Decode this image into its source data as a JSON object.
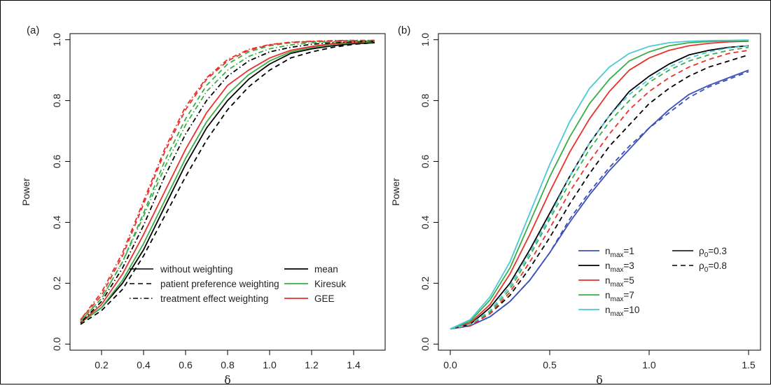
{
  "figure": {
    "panels": [
      "(a)",
      "(b)"
    ]
  },
  "colors": {
    "black": "#000000",
    "blue": "#3a4fb8",
    "green": "#3aae46",
    "red": "#e8312c",
    "cyan": "#4cc8d8"
  },
  "chart_data": [
    {
      "panel": "(a)",
      "type": "line",
      "xlabel": "δ",
      "ylabel": "Power",
      "xlim": [
        0.05,
        1.55
      ],
      "ylim": [
        -0.02,
        1.02
      ],
      "xticks": [
        "0.2",
        "0.4",
        "0.6",
        "0.8",
        "1.0",
        "1.2",
        "1.4"
      ],
      "yticks": [
        "0.0",
        "0.2",
        "0.4",
        "0.6",
        "0.8",
        "1.0"
      ],
      "x": [
        0.1,
        0.2,
        0.3,
        0.4,
        0.5,
        0.6,
        0.7,
        0.8,
        0.9,
        1.0,
        1.1,
        1.2,
        1.3,
        1.4,
        1.5
      ],
      "legend": {
        "styles": [
          {
            "label": "without weighting",
            "dash": "solid"
          },
          {
            "label": "patient preference weighting",
            "dash": "dashed"
          },
          {
            "label": "treatment effect weighting",
            "dash": "dotdash"
          }
        ],
        "methods": [
          {
            "label": "mean",
            "color": "#000000"
          },
          {
            "label": "Kiresuk",
            "color": "#3aae46"
          },
          {
            "label": "GEE",
            "color": "#e8312c"
          }
        ],
        "placement": "bottom-right"
      },
      "series": [
        {
          "method": "mean",
          "weighting": "solid",
          "color": "#000000",
          "dash": "solid",
          "values": [
            0.07,
            0.12,
            0.2,
            0.31,
            0.45,
            0.59,
            0.71,
            0.8,
            0.87,
            0.92,
            0.955,
            0.97,
            0.98,
            0.987,
            0.99
          ]
        },
        {
          "method": "Kiresuk",
          "weighting": "solid",
          "color": "#3aae46",
          "dash": "solid",
          "values": [
            0.07,
            0.12,
            0.21,
            0.33,
            0.47,
            0.61,
            0.73,
            0.82,
            0.885,
            0.93,
            0.96,
            0.975,
            0.985,
            0.99,
            0.993
          ]
        },
        {
          "method": "GEE",
          "weighting": "solid",
          "color": "#e8312c",
          "dash": "solid",
          "values": [
            0.07,
            0.13,
            0.23,
            0.36,
            0.5,
            0.64,
            0.76,
            0.85,
            0.9,
            0.94,
            0.965,
            0.978,
            0.987,
            0.992,
            0.995
          ]
        },
        {
          "method": "mean",
          "weighting": "dashed",
          "color": "#000000",
          "dash": "dashed",
          "values": [
            0.065,
            0.11,
            0.18,
            0.29,
            0.42,
            0.55,
            0.67,
            0.77,
            0.845,
            0.9,
            0.94,
            0.96,
            0.975,
            0.985,
            0.99
          ]
        },
        {
          "method": "Kiresuk",
          "weighting": "dashed",
          "color": "#3aae46",
          "dash": "dashed",
          "values": [
            0.075,
            0.15,
            0.27,
            0.43,
            0.6,
            0.74,
            0.85,
            0.92,
            0.96,
            0.98,
            0.99,
            0.993,
            0.995,
            0.996,
            0.997
          ]
        },
        {
          "method": "GEE",
          "weighting": "dashed",
          "color": "#e8312c",
          "dash": "dashed",
          "values": [
            0.08,
            0.16,
            0.29,
            0.46,
            0.63,
            0.77,
            0.87,
            0.93,
            0.965,
            0.983,
            0.991,
            0.994,
            0.996,
            0.997,
            0.998
          ]
        },
        {
          "method": "mean",
          "weighting": "dotdash",
          "color": "#000000",
          "dash": "dotdash",
          "values": [
            0.07,
            0.14,
            0.25,
            0.39,
            0.55,
            0.69,
            0.8,
            0.88,
            0.93,
            0.96,
            0.975,
            0.985,
            0.99,
            0.993,
            0.995
          ]
        },
        {
          "method": "Kiresuk",
          "weighting": "dotdash",
          "color": "#3aae46",
          "dash": "dotdash",
          "values": [
            0.075,
            0.15,
            0.27,
            0.42,
            0.58,
            0.72,
            0.83,
            0.9,
            0.945,
            0.97,
            0.983,
            0.99,
            0.993,
            0.995,
            0.996
          ]
        },
        {
          "method": "GEE",
          "weighting": "dotdash",
          "color": "#e8312c",
          "dash": "dotdash",
          "values": [
            0.08,
            0.17,
            0.3,
            0.47,
            0.64,
            0.78,
            0.875,
            0.935,
            0.968,
            0.984,
            0.992,
            0.995,
            0.997,
            0.998,
            0.998
          ]
        }
      ]
    },
    {
      "panel": "(b)",
      "type": "line",
      "xlabel": "δ",
      "ylabel": "Power",
      "xlim": [
        -0.06,
        1.56
      ],
      "ylim": [
        -0.02,
        1.02
      ],
      "xticks": [
        "0.0",
        "0.5",
        "1.0",
        "1.5"
      ],
      "yticks": [
        "0.0",
        "0.2",
        "0.4",
        "0.6",
        "0.8",
        "1.0"
      ],
      "x": [
        0.0,
        0.1,
        0.2,
        0.3,
        0.4,
        0.5,
        0.6,
        0.7,
        0.8,
        0.9,
        1.0,
        1.1,
        1.2,
        1.3,
        1.4,
        1.5
      ],
      "legend": {
        "nmax": [
          {
            "label": "n",
            "sub": "max",
            "value": "=1",
            "color": "#3a4fb8"
          },
          {
            "label": "n",
            "sub": "max",
            "value": "=3",
            "color": "#000000"
          },
          {
            "label": "n",
            "sub": "max",
            "value": "=5",
            "color": "#e8312c"
          },
          {
            "label": "n",
            "sub": "max",
            "value": "=7",
            "color": "#3aae46"
          },
          {
            "label": "n",
            "sub": "max",
            "value": "=10",
            "color": "#4cc8d8"
          }
        ],
        "rho": [
          {
            "label": "ρ",
            "sub": "0",
            "value": "=0.3",
            "dash": "solid"
          },
          {
            "label": "ρ",
            "sub": "0",
            "value": "=0.8",
            "dash": "dashed"
          }
        ],
        "placement": "bottom-right"
      },
      "series": [
        {
          "nmax": "1",
          "rho0": "0.3",
          "color": "#3a4fb8",
          "dash": "solid",
          "values": [
            0.05,
            0.06,
            0.09,
            0.14,
            0.21,
            0.3,
            0.4,
            0.49,
            0.57,
            0.64,
            0.71,
            0.77,
            0.82,
            0.85,
            0.875,
            0.9
          ]
        },
        {
          "nmax": "1",
          "rho0": "0.8",
          "color": "#3a4fb8",
          "dash": "dashed",
          "values": [
            0.05,
            0.06,
            0.09,
            0.14,
            0.21,
            0.3,
            0.41,
            0.5,
            0.58,
            0.65,
            0.71,
            0.76,
            0.81,
            0.845,
            0.87,
            0.895
          ]
        },
        {
          "nmax": "3",
          "rho0": "0.3",
          "color": "#000000",
          "dash": "solid",
          "values": [
            0.05,
            0.065,
            0.12,
            0.2,
            0.31,
            0.43,
            0.55,
            0.66,
            0.75,
            0.83,
            0.88,
            0.92,
            0.95,
            0.965,
            0.975,
            0.98
          ]
        },
        {
          "nmax": "3",
          "rho0": "0.8",
          "color": "#000000",
          "dash": "dashed",
          "values": [
            0.05,
            0.06,
            0.1,
            0.16,
            0.25,
            0.35,
            0.46,
            0.56,
            0.65,
            0.72,
            0.79,
            0.84,
            0.88,
            0.91,
            0.93,
            0.95
          ]
        },
        {
          "nmax": "5",
          "rho0": "0.3",
          "color": "#e8312c",
          "dash": "solid",
          "values": [
            0.05,
            0.07,
            0.13,
            0.23,
            0.36,
            0.5,
            0.63,
            0.74,
            0.83,
            0.9,
            0.94,
            0.965,
            0.98,
            0.988,
            0.993,
            0.995
          ]
        },
        {
          "nmax": "5",
          "rho0": "0.8",
          "color": "#e8312c",
          "dash": "dashed",
          "values": [
            0.05,
            0.06,
            0.1,
            0.17,
            0.27,
            0.38,
            0.5,
            0.6,
            0.69,
            0.77,
            0.83,
            0.875,
            0.91,
            0.935,
            0.955,
            0.965
          ]
        },
        {
          "nmax": "7",
          "rho0": "0.3",
          "color": "#3aae46",
          "dash": "solid",
          "values": [
            0.05,
            0.075,
            0.145,
            0.25,
            0.4,
            0.55,
            0.68,
            0.79,
            0.87,
            0.93,
            0.96,
            0.98,
            0.99,
            0.994,
            0.996,
            0.997
          ]
        },
        {
          "nmax": "7",
          "rho0": "0.8",
          "color": "#3aae46",
          "dash": "dashed",
          "values": [
            0.05,
            0.065,
            0.105,
            0.18,
            0.29,
            0.41,
            0.53,
            0.64,
            0.73,
            0.8,
            0.86,
            0.9,
            0.93,
            0.95,
            0.965,
            0.975
          ]
        },
        {
          "nmax": "10",
          "rho0": "0.3",
          "color": "#4cc8d8",
          "dash": "solid",
          "values": [
            0.05,
            0.08,
            0.155,
            0.27,
            0.43,
            0.59,
            0.73,
            0.84,
            0.91,
            0.955,
            0.978,
            0.99,
            0.995,
            0.997,
            0.998,
            0.999
          ]
        },
        {
          "nmax": "10",
          "rho0": "0.8",
          "color": "#4cc8d8",
          "dash": "dashed",
          "values": [
            0.05,
            0.065,
            0.11,
            0.19,
            0.3,
            0.42,
            0.55,
            0.66,
            0.75,
            0.82,
            0.87,
            0.91,
            0.94,
            0.96,
            0.973,
            0.98
          ]
        }
      ]
    }
  ]
}
